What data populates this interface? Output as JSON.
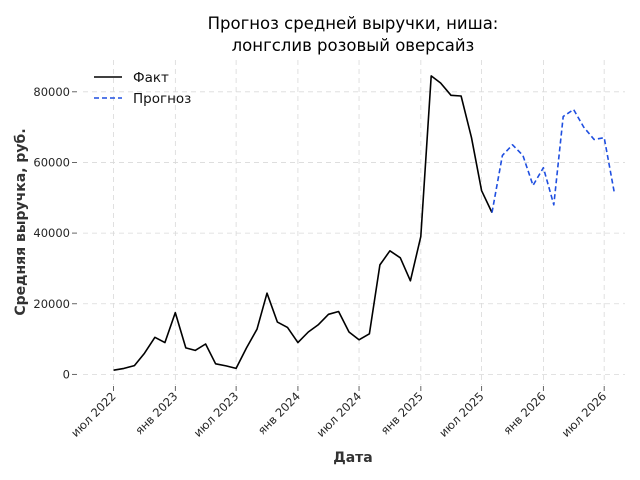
{
  "chart_data": {
    "type": "line",
    "title_lines": [
      "Прогноз средней выручки, ниша:",
      "лонгслив розовый оверсайз"
    ],
    "xlabel": "Дата",
    "ylabel": "Средняя выручка, руб.",
    "ylim": [
      -3000,
      89000
    ],
    "xlim": [
      "2022-04-01",
      "2026-09-01"
    ],
    "y_ticks": [
      0,
      20000,
      40000,
      60000,
      80000
    ],
    "x_ticks": [
      {
        "date": "2022-07-01",
        "label": "июл 2022"
      },
      {
        "date": "2023-01-01",
        "label": "янв 2023"
      },
      {
        "date": "2023-07-01",
        "label": "июл 2023"
      },
      {
        "date": "2024-01-01",
        "label": "янв 2024"
      },
      {
        "date": "2024-07-01",
        "label": "июл 2024"
      },
      {
        "date": "2025-01-01",
        "label": "янв 2025"
      },
      {
        "date": "2025-07-01",
        "label": "июл 2025"
      },
      {
        "date": "2026-01-01",
        "label": "янв 2026"
      },
      {
        "date": "2026-07-01",
        "label": "июл 2026"
      }
    ],
    "grid": true,
    "legend_position": "top-left",
    "series": [
      {
        "name": "Факт",
        "style": "solid",
        "color": "#000000",
        "x": [
          "2022-07-01",
          "2022-08-01",
          "2022-09-01",
          "2022-10-01",
          "2022-11-01",
          "2022-12-01",
          "2023-01-01",
          "2023-02-01",
          "2023-03-01",
          "2023-04-01",
          "2023-05-01",
          "2023-06-01",
          "2023-07-01",
          "2023-08-01",
          "2023-09-01",
          "2023-10-01",
          "2023-11-01",
          "2023-12-01",
          "2024-01-01",
          "2024-02-01",
          "2024-03-01",
          "2024-04-01",
          "2024-05-01",
          "2024-06-01",
          "2024-07-01",
          "2024-08-01",
          "2024-09-01",
          "2024-10-01",
          "2024-11-01",
          "2024-12-01",
          "2025-01-01",
          "2025-02-01",
          "2025-03-01",
          "2025-04-01",
          "2025-05-01",
          "2025-06-01",
          "2025-07-01",
          "2025-08-01"
        ],
        "values": [
          1200,
          1700,
          2500,
          6000,
          10500,
          9000,
          17500,
          7500,
          6800,
          8600,
          3000,
          2400,
          1700,
          7500,
          12800,
          23000,
          14800,
          13300,
          9000,
          12000,
          14000,
          17000,
          17800,
          12000,
          9800,
          11500,
          31000,
          35000,
          33000,
          26500,
          39000,
          84500,
          82500,
          79000,
          78800,
          67000,
          52000,
          45800
        ]
      },
      {
        "name": "Прогноз",
        "style": "dashed",
        "color": "#1f4fe0",
        "x": [
          "2025-08-01",
          "2025-09-01",
          "2025-10-01",
          "2025-11-01",
          "2025-12-01",
          "2026-01-01",
          "2026-02-01",
          "2026-03-01",
          "2026-04-01",
          "2026-05-01",
          "2026-06-01",
          "2026-07-01",
          "2026-08-01"
        ],
        "values": [
          45800,
          62000,
          65000,
          62000,
          53500,
          58500,
          48000,
          73000,
          75000,
          70000,
          66500,
          67000,
          51000
        ]
      }
    ]
  }
}
